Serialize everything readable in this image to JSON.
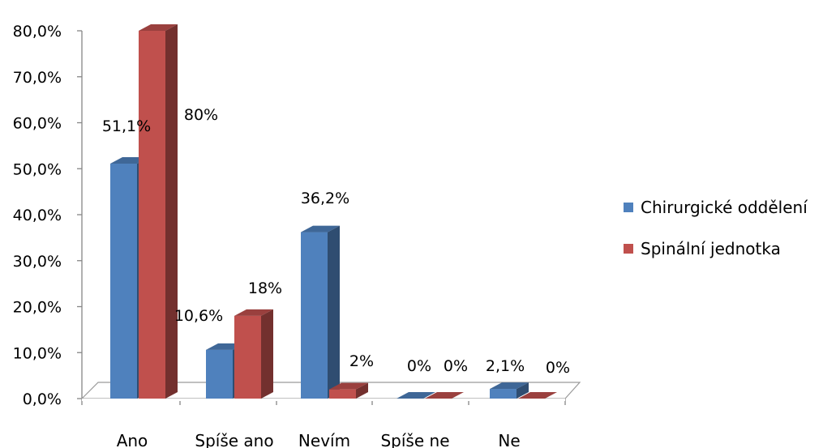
{
  "chart_data": {
    "type": "bar",
    "categories": [
      "Ano",
      "Spíše ano",
      "Nevím",
      "Spíše ne",
      "Ne"
    ],
    "series": [
      {
        "name": "Chirurgické oddělení",
        "values": [
          51.1,
          10.6,
          36.2,
          0,
          2.1
        ],
        "labels": [
          "51,1%",
          "10,6%",
          "36,2%",
          "0%",
          "2,1%"
        ],
        "color": "#4F81BD"
      },
      {
        "name": "Spinální jednotka",
        "values": [
          80,
          18,
          2,
          0,
          0
        ],
        "labels": [
          "80%",
          "18%",
          "2%",
          "0%",
          "0%"
        ],
        "color": "#C0504D"
      }
    ],
    "ylim": [
      0,
      80
    ],
    "yticks": [
      "0,0%",
      "10,0%",
      "20,0%",
      "30,0%",
      "40,0%",
      "50,0%",
      "60,0%",
      "70,0%",
      "80,0%"
    ],
    "grid": false,
    "legend": "right",
    "three_d": true
  }
}
